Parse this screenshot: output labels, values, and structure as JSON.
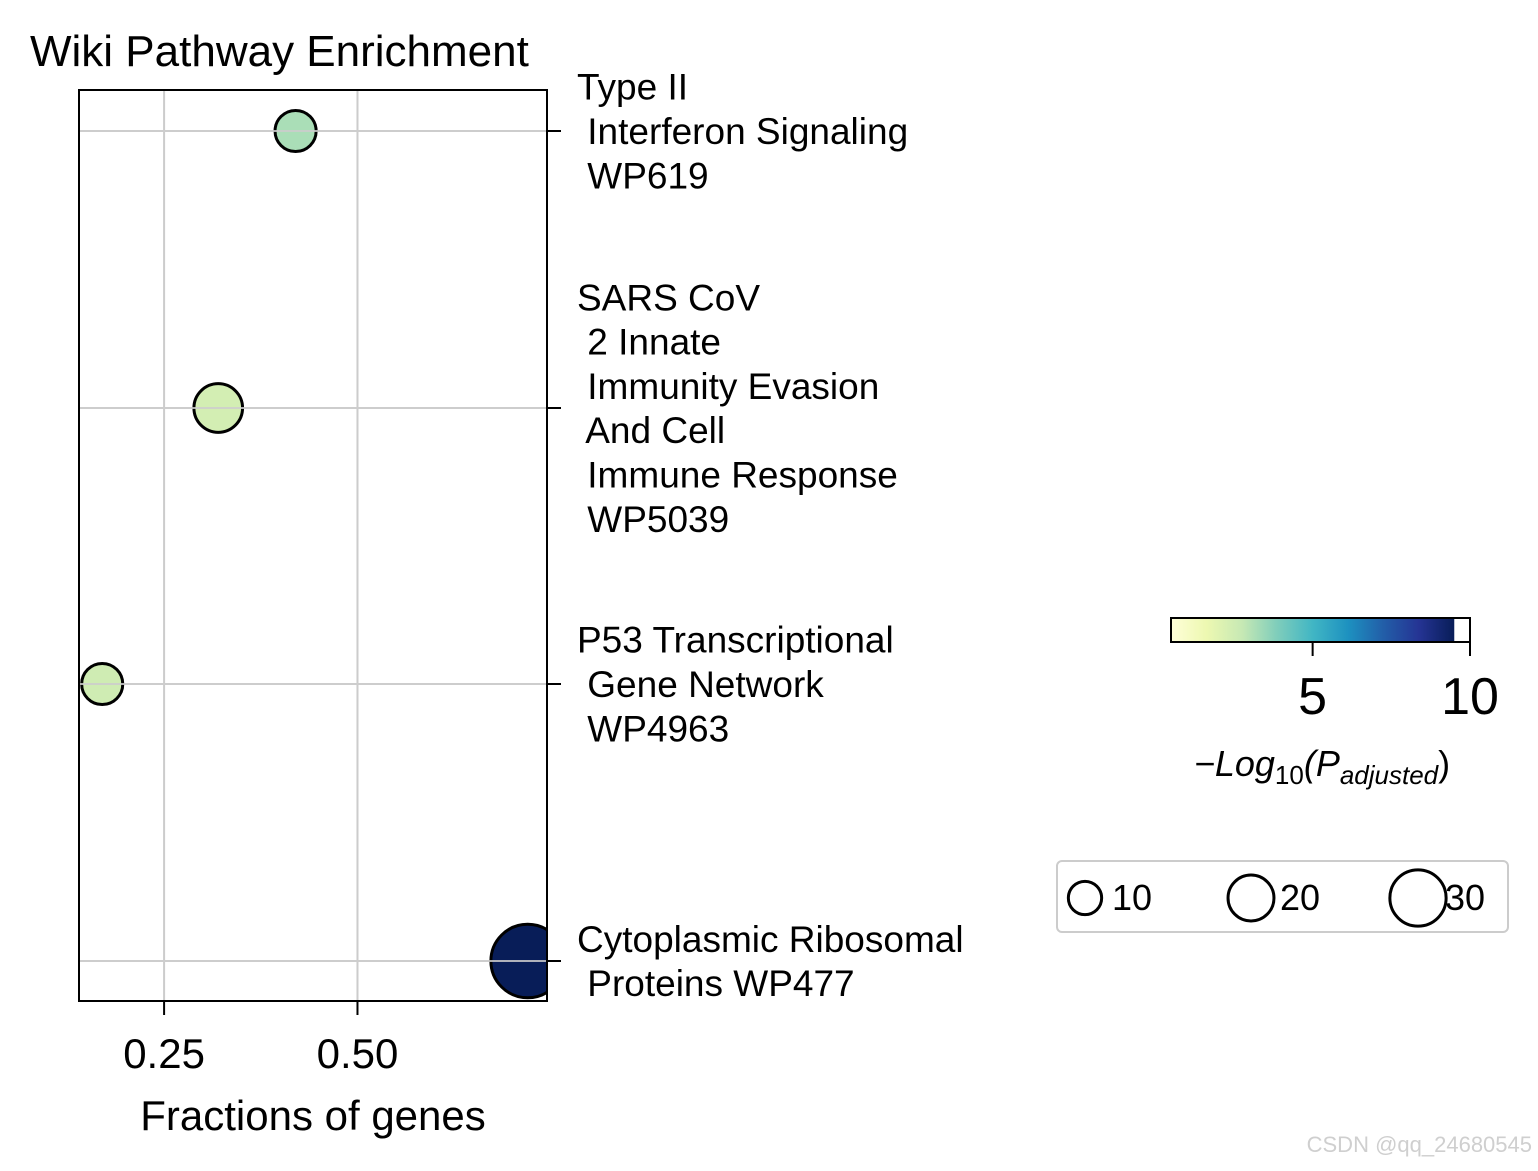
{
  "chart_data": {
    "type": "scatter",
    "title": "Wiki Pathway Enrichment",
    "xlabel": "Fractions of genes",
    "ylabel": "",
    "xlim": [
      0.14,
      0.745
    ],
    "xticks": [
      {
        "value": 0.25,
        "label": "0.25"
      },
      {
        "value": 0.5,
        "label": "0.50"
      }
    ],
    "grid": true,
    "points": [
      {
        "pathway": "Type II Interferon Signaling WP619",
        "label_lines": [
          "Type II",
          " Interferon Signaling",
          " WP619"
        ],
        "fraction": 0.42,
        "neg_log10_padj": 3.2,
        "gene_count": 10
      },
      {
        "pathway": "SARS CoV 2 Innate Immunity Evasion And Cell Immune Response WP5039",
        "label_lines": [
          "SARS CoV",
          " 2 Innate",
          " Immunity Evasion",
          " And Cell",
          " Immune Response",
          " WP5039"
        ],
        "fraction": 0.32,
        "neg_log10_padj": 2.4,
        "gene_count": 14
      },
      {
        "pathway": "P53 Transcriptional Gene Network WP4963",
        "label_lines": [
          "P53 Transcriptional",
          " Gene Network",
          " WP4963"
        ],
        "fraction": 0.17,
        "neg_log10_padj": 2.5,
        "gene_count": 10
      },
      {
        "pathway": "Cytoplasmic Ribosomal Proteins WP477",
        "label_lines": [
          "Cytoplasmic Ribosomal",
          " Proteins WP477"
        ],
        "fraction": 0.72,
        "neg_log10_padj": 9.5,
        "gene_count": 32
      }
    ],
    "colorbar": {
      "label": "−Log10(Padjusted)",
      "label_prefix": "−Log",
      "label_sub1": "10",
      "label_mid": "(P",
      "label_sub2": "adjusted",
      "label_suffix": ")",
      "range": [
        0.5,
        10
      ],
      "data_max": 9.5,
      "ticks": [
        {
          "value": 5,
          "label": "5"
        },
        {
          "value": 10,
          "label": "10"
        }
      ],
      "colormap_stops": [
        "#ffffd9",
        "#edf8b1",
        "#c7e9b4",
        "#7fcdbb",
        "#41b6c4",
        "#1d91c0",
        "#225ea8",
        "#253494",
        "#081d58"
      ]
    },
    "size_legend": {
      "entries": [
        {
          "value": 10,
          "label": "10"
        },
        {
          "value": 20,
          "label": "20"
        },
        {
          "value": 30,
          "label": "30"
        }
      ]
    }
  },
  "watermark": "CSDN @qq_24680545"
}
